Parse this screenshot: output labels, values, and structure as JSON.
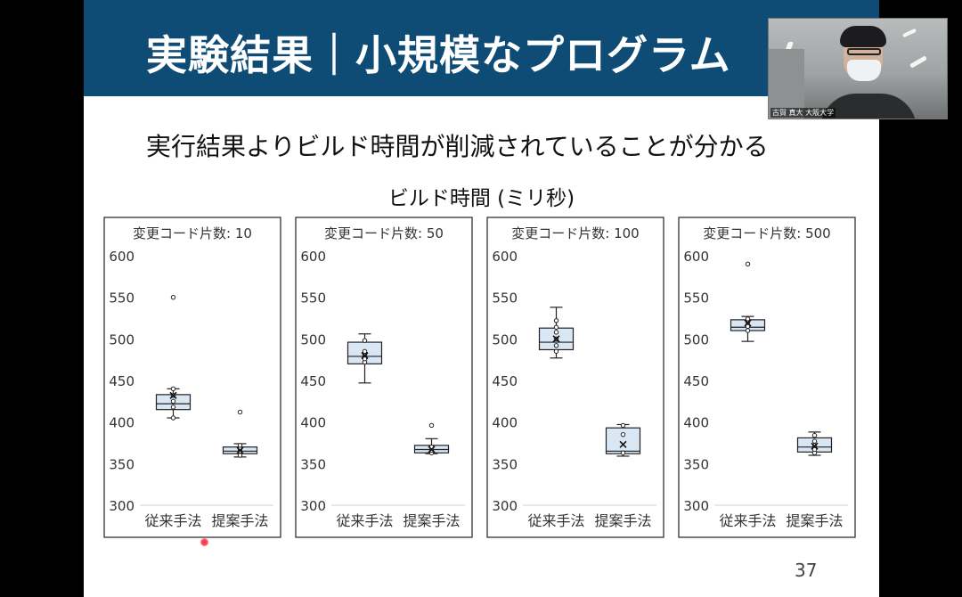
{
  "slide": {
    "title": "実験結果｜小規模なプログラム",
    "subtitle": "実行結果よりビルド時間が削減されていることが分かる",
    "chart_title": "ビルド時間 (ミリ秒)",
    "page_number": "37"
  },
  "video": {
    "caption": "古賀 真大  大阪大学"
  },
  "colors": {
    "header": "#0f4c75",
    "box_fill": "#d9e6f3",
    "frame": "#333333"
  },
  "chart_data": [
    {
      "type": "box",
      "title": "変更コード片数: 10",
      "categories": [
        "従来手法",
        "提案手法"
      ],
      "ylim": [
        300,
        600
      ],
      "yticks": [
        600,
        550,
        500,
        450,
        400,
        350,
        300
      ],
      "grid": false,
      "boxes": [
        {
          "category": "従来手法",
          "min": 405,
          "q1": 415,
          "median": 422,
          "q3": 433,
          "max": 440,
          "mean": 432,
          "points": [
            405,
            418,
            425,
            432,
            440
          ],
          "outliers": [
            550
          ]
        },
        {
          "category": "提案手法",
          "min": 358,
          "q1": 362,
          "median": 365,
          "q3": 370,
          "max": 374,
          "mean": 366,
          "points": [
            360,
            365,
            368,
            372
          ],
          "outliers": [
            412
          ]
        }
      ]
    },
    {
      "type": "box",
      "title": "変更コード片数: 50",
      "categories": [
        "従来手法",
        "提案手法"
      ],
      "ylim": [
        300,
        600
      ],
      "yticks": [
        600,
        550,
        500,
        450,
        400,
        350,
        300
      ],
      "grid": false,
      "boxes": [
        {
          "category": "従来手法",
          "min": 447,
          "q1": 470,
          "median": 479,
          "q3": 496,
          "max": 506,
          "mean": 480,
          "points": [
            472,
            476,
            481,
            485,
            498
          ],
          "outliers": []
        },
        {
          "category": "提案手法",
          "min": 362,
          "q1": 363,
          "median": 367,
          "q3": 372,
          "max": 380,
          "mean": 367,
          "points": [
            363,
            366,
            370
          ],
          "outliers": [
            396
          ]
        }
      ]
    },
    {
      "type": "box",
      "title": "変更コード片数: 100",
      "categories": [
        "従来手法",
        "提案手法"
      ],
      "ylim": [
        300,
        600
      ],
      "yticks": [
        600,
        550,
        500,
        450,
        400,
        350,
        300
      ],
      "grid": false,
      "boxes": [
        {
          "category": "従来手法",
          "min": 477,
          "q1": 487,
          "median": 496,
          "q3": 513,
          "max": 538,
          "mean": 500,
          "points": [
            485,
            492,
            500,
            508,
            514,
            522
          ],
          "outliers": []
        },
        {
          "category": "提案手法",
          "min": 359,
          "q1": 362,
          "median": 365,
          "q3": 393,
          "max": 397,
          "mean": 373,
          "points": [
            363,
            385,
            396
          ],
          "outliers": []
        }
      ]
    },
    {
      "type": "box",
      "title": "変更コード片数: 500",
      "categories": [
        "従来手法",
        "提案手法"
      ],
      "ylim": [
        300,
        600
      ],
      "yticks": [
        600,
        550,
        500,
        450,
        400,
        350,
        300
      ],
      "grid": false,
      "boxes": [
        {
          "category": "従来手法",
          "min": 497,
          "q1": 510,
          "median": 514,
          "q3": 523,
          "max": 527,
          "mean": 519,
          "points": [
            510,
            515,
            520,
            524
          ],
          "outliers": [
            590
          ]
        },
        {
          "category": "提案手法",
          "min": 360,
          "q1": 364,
          "median": 370,
          "q3": 381,
          "max": 388,
          "mean": 371,
          "points": [
            363,
            367,
            372,
            377,
            384
          ],
          "outliers": []
        }
      ]
    }
  ]
}
